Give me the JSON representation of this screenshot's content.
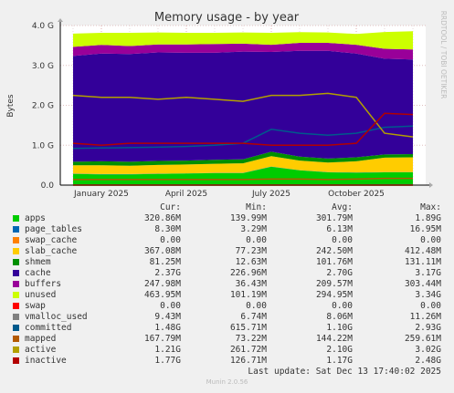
{
  "side_label": "RRDTOOL / TOBI OETIKER",
  "columns": {
    "cur": "Cur:",
    "min": "Min:",
    "avg": "Avg:",
    "max": "Max:"
  },
  "last_update": "Last update: Sat Dec 13 17:40:02 2025",
  "munin": "Munin 2.0.56",
  "legend": [
    {
      "name": "apps",
      "color": "#00cc00",
      "cur": "320.86M",
      "min": "139.99M",
      "avg": "301.79M",
      "max": "1.89G"
    },
    {
      "name": "page_tables",
      "color": "#0066b3",
      "cur": "8.30M",
      "min": "3.29M",
      "avg": "6.13M",
      "max": "16.95M"
    },
    {
      "name": "swap_cache",
      "color": "#ff8000",
      "cur": "0.00",
      "min": "0.00",
      "avg": "0.00",
      "max": "0.00"
    },
    {
      "name": "slab_cache",
      "color": "#ffcc00",
      "cur": "367.08M",
      "min": "77.23M",
      "avg": "242.50M",
      "max": "412.48M"
    },
    {
      "name": "shmem",
      "color": "#008f00",
      "cur": "81.25M",
      "min": "12.63M",
      "avg": "101.76M",
      "max": "131.11M"
    },
    {
      "name": "cache",
      "color": "#330099",
      "cur": "2.37G",
      "min": "226.96M",
      "avg": "2.70G",
      "max": "3.17G"
    },
    {
      "name": "buffers",
      "color": "#990099",
      "cur": "247.98M",
      "min": "36.43M",
      "avg": "209.57M",
      "max": "303.44M"
    },
    {
      "name": "unused",
      "color": "#ccff00",
      "cur": "463.95M",
      "min": "101.19M",
      "avg": "294.95M",
      "max": "3.34G"
    },
    {
      "name": "swap",
      "color": "#ff0000",
      "cur": "0.00",
      "min": "0.00",
      "avg": "0.00",
      "max": "0.00"
    },
    {
      "name": "vmalloc_used",
      "color": "#808080",
      "cur": "9.43M",
      "min": "6.74M",
      "avg": "8.06M",
      "max": "11.26M"
    },
    {
      "name": "committed",
      "color": "#005a8c",
      "cur": "1.48G",
      "min": "615.71M",
      "avg": "1.10G",
      "max": "2.93G"
    },
    {
      "name": "mapped",
      "color": "#b35a00",
      "cur": "167.79M",
      "min": "73.22M",
      "avg": "144.22M",
      "max": "259.61M"
    },
    {
      "name": "active",
      "color": "#b3a000",
      "cur": "1.21G",
      "min": "261.72M",
      "avg": "2.10G",
      "max": "3.02G"
    },
    {
      "name": "inactive",
      "color": "#b30000",
      "cur": "1.77G",
      "min": "126.71M",
      "avg": "1.17G",
      "max": "2.48G"
    }
  ],
  "chart_data": {
    "type": "area",
    "title": "Memory usage - by year",
    "ylabel": "Bytes",
    "yticks": [
      "0.0",
      "1.0 G",
      "2.0 G",
      "3.0 G",
      "4.0 G"
    ],
    "ylim": [
      0,
      4.0
    ],
    "xticks": [
      "January 2025",
      "April 2025",
      "July 2025",
      "October 2025"
    ],
    "xtick_months": [
      1.0,
      4.0,
      7.0,
      10.0
    ],
    "xlim_months": [
      -0.45,
      12.45
    ],
    "x_months": [
      0,
      1,
      2,
      3,
      4,
      5,
      6,
      7,
      8,
      9,
      10,
      11,
      12
    ],
    "stacked_series": [
      {
        "name": "apps",
        "color": "#00cc00",
        "values": [
          0.28,
          0.27,
          0.27,
          0.28,
          0.29,
          0.3,
          0.3,
          0.46,
          0.37,
          0.32,
          0.31,
          0.32,
          0.32
        ]
      },
      {
        "name": "page_tables",
        "color": "#0066b3",
        "values": [
          0.006,
          0.006,
          0.006,
          0.006,
          0.006,
          0.006,
          0.006,
          0.007,
          0.006,
          0.006,
          0.007,
          0.008,
          0.008
        ]
      },
      {
        "name": "slab_cache",
        "color": "#ffcc00",
        "values": [
          0.21,
          0.22,
          0.21,
          0.22,
          0.22,
          0.23,
          0.24,
          0.26,
          0.24,
          0.24,
          0.28,
          0.36,
          0.37
        ]
      },
      {
        "name": "shmem",
        "color": "#008f00",
        "values": [
          0.09,
          0.1,
          0.1,
          0.1,
          0.1,
          0.1,
          0.1,
          0.11,
          0.1,
          0.1,
          0.1,
          0.08,
          0.08
        ]
      },
      {
        "name": "cache",
        "color": "#330099",
        "values": [
          2.65,
          2.7,
          2.7,
          2.72,
          2.7,
          2.68,
          2.7,
          2.5,
          2.65,
          2.7,
          2.6,
          2.4,
          2.37
        ]
      },
      {
        "name": "buffers",
        "color": "#990099",
        "values": [
          0.23,
          0.22,
          0.2,
          0.2,
          0.21,
          0.22,
          0.2,
          0.18,
          0.2,
          0.2,
          0.22,
          0.25,
          0.25
        ]
      },
      {
        "name": "unused",
        "color": "#ccff00",
        "values": [
          0.33,
          0.3,
          0.33,
          0.3,
          0.29,
          0.28,
          0.28,
          0.3,
          0.27,
          0.26,
          0.27,
          0.42,
          0.46
        ]
      }
    ],
    "line_series": [
      {
        "name": "committed",
        "color": "#005a8c",
        "values": [
          0.92,
          0.93,
          0.94,
          0.95,
          0.97,
          1.0,
          1.05,
          1.4,
          1.3,
          1.25,
          1.3,
          1.45,
          1.48
        ]
      },
      {
        "name": "mapped",
        "color": "#b35a00",
        "values": [
          0.14,
          0.14,
          0.14,
          0.14,
          0.14,
          0.14,
          0.14,
          0.15,
          0.15,
          0.14,
          0.15,
          0.17,
          0.17
        ]
      },
      {
        "name": "active",
        "color": "#b3a000",
        "values": [
          2.25,
          2.2,
          2.2,
          2.15,
          2.2,
          2.15,
          2.1,
          2.25,
          2.25,
          2.3,
          2.2,
          1.3,
          1.21
        ]
      },
      {
        "name": "inactive",
        "color": "#b30000",
        "values": [
          1.05,
          1.0,
          1.05,
          1.05,
          1.05,
          1.05,
          1.05,
          1.0,
          1.0,
          1.0,
          1.05,
          1.8,
          1.77
        ]
      },
      {
        "name": "vmalloc_used",
        "color": "#808080",
        "values": [
          0.008,
          0.008,
          0.008,
          0.008,
          0.008,
          0.008,
          0.008,
          0.008,
          0.008,
          0.008,
          0.008,
          0.009,
          0.009
        ]
      },
      {
        "name": "swap",
        "color": "#ff0000",
        "values": [
          0,
          0,
          0,
          0,
          0,
          0,
          0,
          0,
          0,
          0,
          0,
          0,
          0
        ]
      },
      {
        "name": "swap_cache",
        "color": "#ff8000",
        "values": [
          0,
          0,
          0,
          0,
          0,
          0,
          0,
          0,
          0,
          0,
          0,
          0,
          0
        ]
      }
    ],
    "grid": true
  }
}
